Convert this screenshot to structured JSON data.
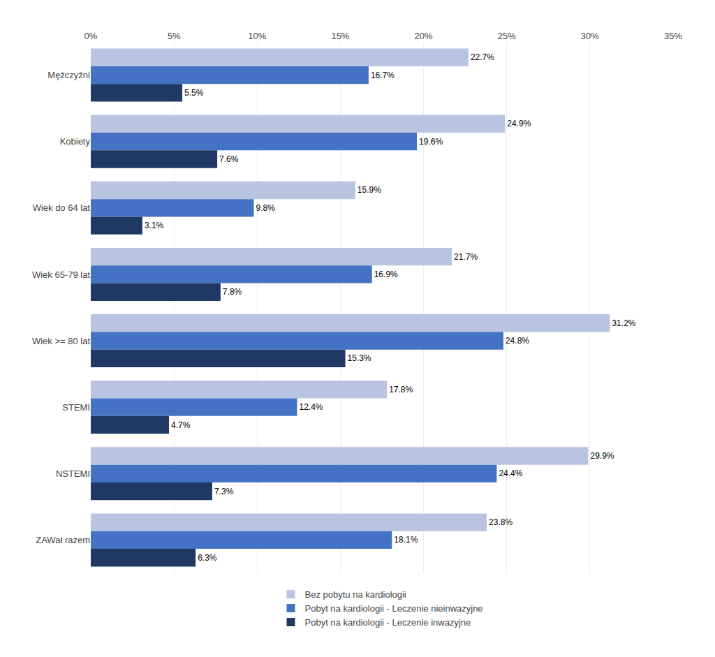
{
  "chart_data": {
    "type": "bar",
    "orientation": "horizontal",
    "categories": [
      "Mężczyźni",
      "Kobiety",
      "Wiek do 64 lat",
      "Wiek 65-79 lat",
      "Wiek >= 80 lat",
      "STEMI",
      "NSTEMI",
      "ZAWał razem"
    ],
    "series": [
      {
        "name": "Bez pobytu na kardiologii",
        "color": "#b8c4e0",
        "values": [
          22.7,
          24.9,
          15.9,
          21.7,
          31.2,
          17.8,
          29.9,
          23.8
        ],
        "value_labels": [
          "22.7%",
          "24.9%",
          "15.9%",
          "21.7%",
          "31.2%",
          "17.8%",
          "29.9%",
          "23.8%"
        ]
      },
      {
        "name": "Pobyt na kardiologii - Leczenie nieinwazyjne",
        "color": "#4472c4",
        "values": [
          16.7,
          19.6,
          9.8,
          16.9,
          24.8,
          12.4,
          24.4,
          18.1
        ],
        "value_labels": [
          "16.7%",
          "19.6%",
          "9.8%",
          "16.9%",
          "24.8%",
          "12.4%",
          "24.4%",
          "18.1%"
        ]
      },
      {
        "name": "Pobyt na kardiologii - Leczenie inwazyjne",
        "color": "#1f3864",
        "values": [
          5.5,
          7.6,
          3.1,
          7.8,
          15.3,
          4.7,
          7.3,
          6.3
        ],
        "value_labels": [
          "5.5%",
          "7.6%",
          "3.1%",
          "7.8%",
          "15.3%",
          "4.7%",
          "7.3%",
          "6.3%"
        ]
      }
    ],
    "xlim": [
      0,
      35
    ],
    "xticks": [
      {
        "value": 0,
        "label": "0%"
      },
      {
        "value": 5,
        "label": "5%"
      },
      {
        "value": 10,
        "label": "10%"
      },
      {
        "value": 15,
        "label": "15%"
      },
      {
        "value": 20,
        "label": "20%"
      },
      {
        "value": 25,
        "label": "25%"
      },
      {
        "value": 30,
        "label": "30%"
      },
      {
        "value": 35,
        "label": "35%"
      }
    ],
    "grid": true,
    "legend": "bottom",
    "data_labels": true
  }
}
